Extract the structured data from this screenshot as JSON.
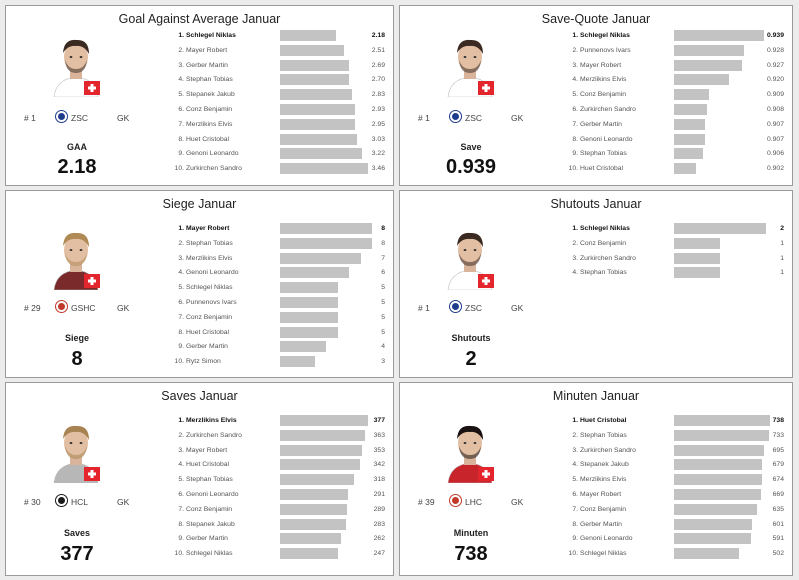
{
  "panels": [
    {
      "title": "Goal Against Average Januar",
      "player": {
        "number": "# 1",
        "team": "ZSC",
        "position": "GK",
        "team_logo_color": "#1e3c8c"
      },
      "stat_label": "GAA",
      "stat_value": "2.18",
      "chart_data": {
        "type": "bar",
        "title": "Goal Against Average Januar",
        "orientation": "horizontal",
        "categories": [
          "Schlegel Niklas",
          "Mayer Robert",
          "Gerber Martin",
          "Stephan Tobias",
          "Stepanek Jakub",
          "Conz Benjamin",
          "Merzlikins Elvis",
          "Huet Cristobal",
          "Genoni Leonardo",
          "Zurkirchen Sandro"
        ],
        "values": [
          2.18,
          2.51,
          2.69,
          2.7,
          2.83,
          2.93,
          2.95,
          3.03,
          3.22,
          3.46
        ],
        "labels": [
          "2.18",
          "2.51",
          "2.69",
          "2.70",
          "2.83",
          "2.93",
          "2.95",
          "3.03",
          "3.22",
          "3.46"
        ],
        "xlim": [
          0,
          3.6
        ]
      }
    },
    {
      "title": "Save-Quote Januar",
      "player": {
        "number": "# 1",
        "team": "ZSC",
        "position": "GK",
        "team_logo_color": "#1e3c8c"
      },
      "stat_label": "Save",
      "stat_value": "0.939",
      "chart_data": {
        "type": "bar",
        "title": "Save-Quote Januar",
        "orientation": "horizontal",
        "categories": [
          "Schlegel Niklas",
          "Punnenovs Ivars",
          "Mayer Robert",
          "Merzlikins Elvis",
          "Conz Benjamin",
          "Zurkirchen Sandro",
          "Gerber Martin",
          "Genoni Leonardo",
          "Stephan Tobias",
          "Huet Cristobal"
        ],
        "values": [
          0.939,
          0.928,
          0.927,
          0.92,
          0.909,
          0.908,
          0.907,
          0.907,
          0.906,
          0.902
        ],
        "labels": [
          "0.939",
          "0.928",
          "0.927",
          "0.920",
          "0.909",
          "0.908",
          "0.907",
          "0.907",
          "0.906",
          "0.902"
        ],
        "xlim": [
          0.89,
          0.94
        ]
      }
    },
    {
      "title": "Siege Januar",
      "player": {
        "number": "# 29",
        "team": "GSHC",
        "position": "GK",
        "team_logo_color": "#c0392b"
      },
      "stat_label": "Siege",
      "stat_value": "8",
      "chart_data": {
        "type": "bar",
        "title": "Siege Januar",
        "orientation": "horizontal",
        "categories": [
          "Mayer Robert",
          "Stephan Tobias",
          "Merzlikins Elvis",
          "Genoni Leonardo",
          "Schlegel Niklas",
          "Punnenovs Ivars",
          "Conz Benjamin",
          "Huet Cristobal",
          "Gerber Martin",
          "Rytz Simon"
        ],
        "values": [
          8,
          8,
          7,
          6,
          5,
          5,
          5,
          5,
          4,
          3
        ],
        "labels": [
          "8",
          "8",
          "7",
          "6",
          "5",
          "5",
          "5",
          "5",
          "4",
          "3"
        ],
        "xlim": [
          0,
          8
        ]
      }
    },
    {
      "title": "Shutouts Januar",
      "player": {
        "number": "# 1",
        "team": "ZSC",
        "position": "GK",
        "team_logo_color": "#1e3c8c"
      },
      "stat_label": "Shutouts",
      "stat_value": "2",
      "chart_data": {
        "type": "bar",
        "title": "Shutouts Januar",
        "orientation": "horizontal",
        "categories": [
          "Schlegel Niklas",
          "Conz Benjamin",
          "Zurkirchen Sandro",
          "Stephan Tobias"
        ],
        "values": [
          2,
          1,
          1,
          1
        ],
        "labels": [
          "2",
          "1",
          "1",
          "1"
        ],
        "xlim": [
          0,
          2
        ]
      }
    },
    {
      "title": "Saves Januar",
      "player": {
        "number": "# 30",
        "team": "HCL",
        "position": "GK",
        "team_logo_color": "#1a1a1a"
      },
      "stat_label": "Saves",
      "stat_value": "377",
      "chart_data": {
        "type": "bar",
        "title": "Saves Januar",
        "orientation": "horizontal",
        "categories": [
          "Merzlikins Elvis",
          "Zurkirchen Sandro",
          "Mayer Robert",
          "Huet Cristobal",
          "Stephan Tobias",
          "Genoni Leonardo",
          "Conz Benjamin",
          "Stepanek Jakub",
          "Gerber Martin",
          "Schlegel Niklas"
        ],
        "values": [
          377,
          363,
          353,
          342,
          318,
          291,
          289,
          283,
          262,
          247
        ],
        "labels": [
          "377",
          "363",
          "353",
          "342",
          "318",
          "291",
          "289",
          "283",
          "262",
          "247"
        ],
        "xlim": [
          0,
          377
        ]
      }
    },
    {
      "title": "Minuten Januar",
      "player": {
        "number": "# 39",
        "team": "LHC",
        "position": "GK",
        "team_logo_color": "#c0392b"
      },
      "stat_label": "Minuten",
      "stat_value": "738",
      "chart_data": {
        "type": "bar",
        "title": "Minuten Januar",
        "orientation": "horizontal",
        "categories": [
          "Huet Cristobal",
          "Stephan Tobias",
          "Zurkirchen Sandro",
          "Stepanek Jakub",
          "Merzlikins Elvis",
          "Mayer Robert",
          "Conz Benjamin",
          "Gerber Martin",
          "Genoni Leonardo",
          "Schlegel Niklas"
        ],
        "values": [
          738,
          733,
          695,
          679,
          674,
          669,
          635,
          601,
          591,
          502
        ],
        "labels": [
          "738",
          "733",
          "695",
          "679",
          "674",
          "669",
          "635",
          "601",
          "591",
          "502"
        ],
        "xlim": [
          0,
          738
        ]
      }
    }
  ],
  "colors": {
    "bar": "#c3c3c3",
    "flag_red": "#e3262e",
    "panel_border": "#9a9a9a",
    "background": "#ececec"
  },
  "icons": {
    "flag": "swiss-flag-icon",
    "logo": "team-logo-icon",
    "portrait": "player-portrait"
  }
}
